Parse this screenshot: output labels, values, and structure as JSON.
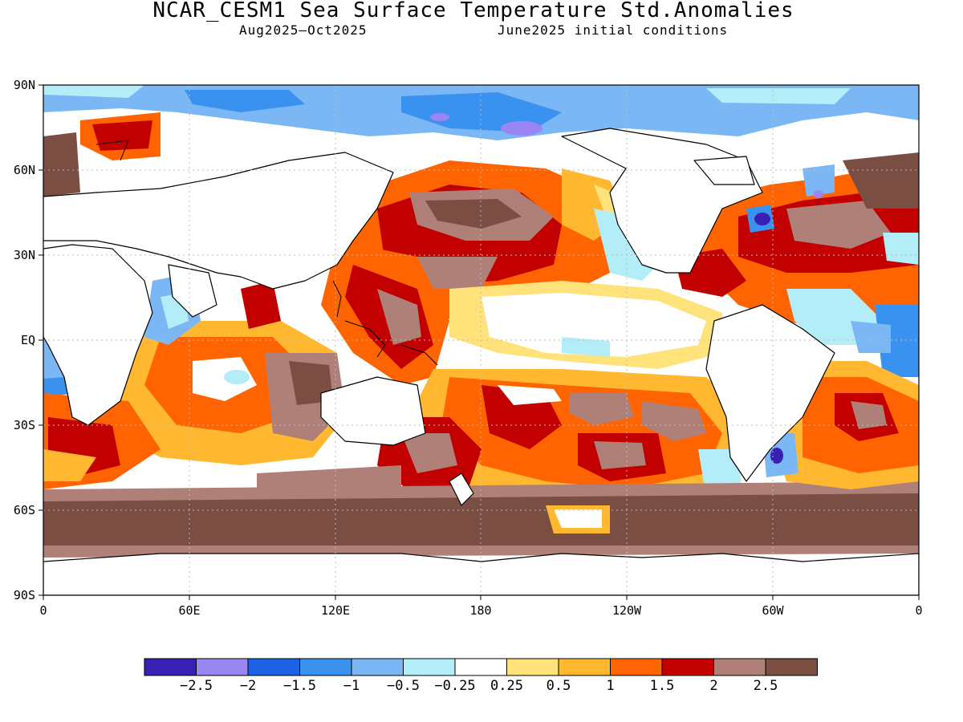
{
  "title": "NCAR_CESM1 Sea Surface Temperature Std.Anomalies",
  "subtitle_left": "Aug2025–Oct2025",
  "subtitle_right": "June2025 initial conditions",
  "lat_ticks": [
    "90N",
    "60N",
    "30N",
    "EQ",
    "30S",
    "60S",
    "90S"
  ],
  "lon_ticks": [
    "0",
    "60E",
    "120E",
    "180",
    "120W",
    "60W",
    "0"
  ],
  "colorbar": {
    "colors": [
      "#3a1fb4",
      "#9a85f4",
      "#1d62e6",
      "#3a92f0",
      "#7bb7f4",
      "#b3edf8",
      "#ffffff",
      "#ffe27a",
      "#ffb830",
      "#ff6400",
      "#c20000",
      "#ae8078",
      "#7b4e44"
    ],
    "labels": [
      "−2.5",
      "−2",
      "−1.5",
      "−1",
      "−0.5",
      "−0.25",
      "0.25",
      "0.5",
      "1",
      "1.5",
      "2",
      "2.5"
    ]
  },
  "land_color": "#ffffff",
  "coast_color": "#000000"
}
